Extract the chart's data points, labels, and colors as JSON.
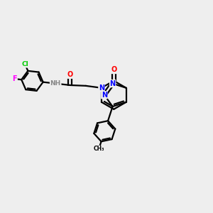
{
  "bg_color": "#eeeeee",
  "bond_color": "#000000",
  "bond_width": 1.5,
  "heteroatom_colors": {
    "N": "#0000ff",
    "O": "#ff0000",
    "Cl": "#00cc00",
    "F": "#ff00ff",
    "NH_color": "#888888"
  },
  "font_size": 7.0
}
